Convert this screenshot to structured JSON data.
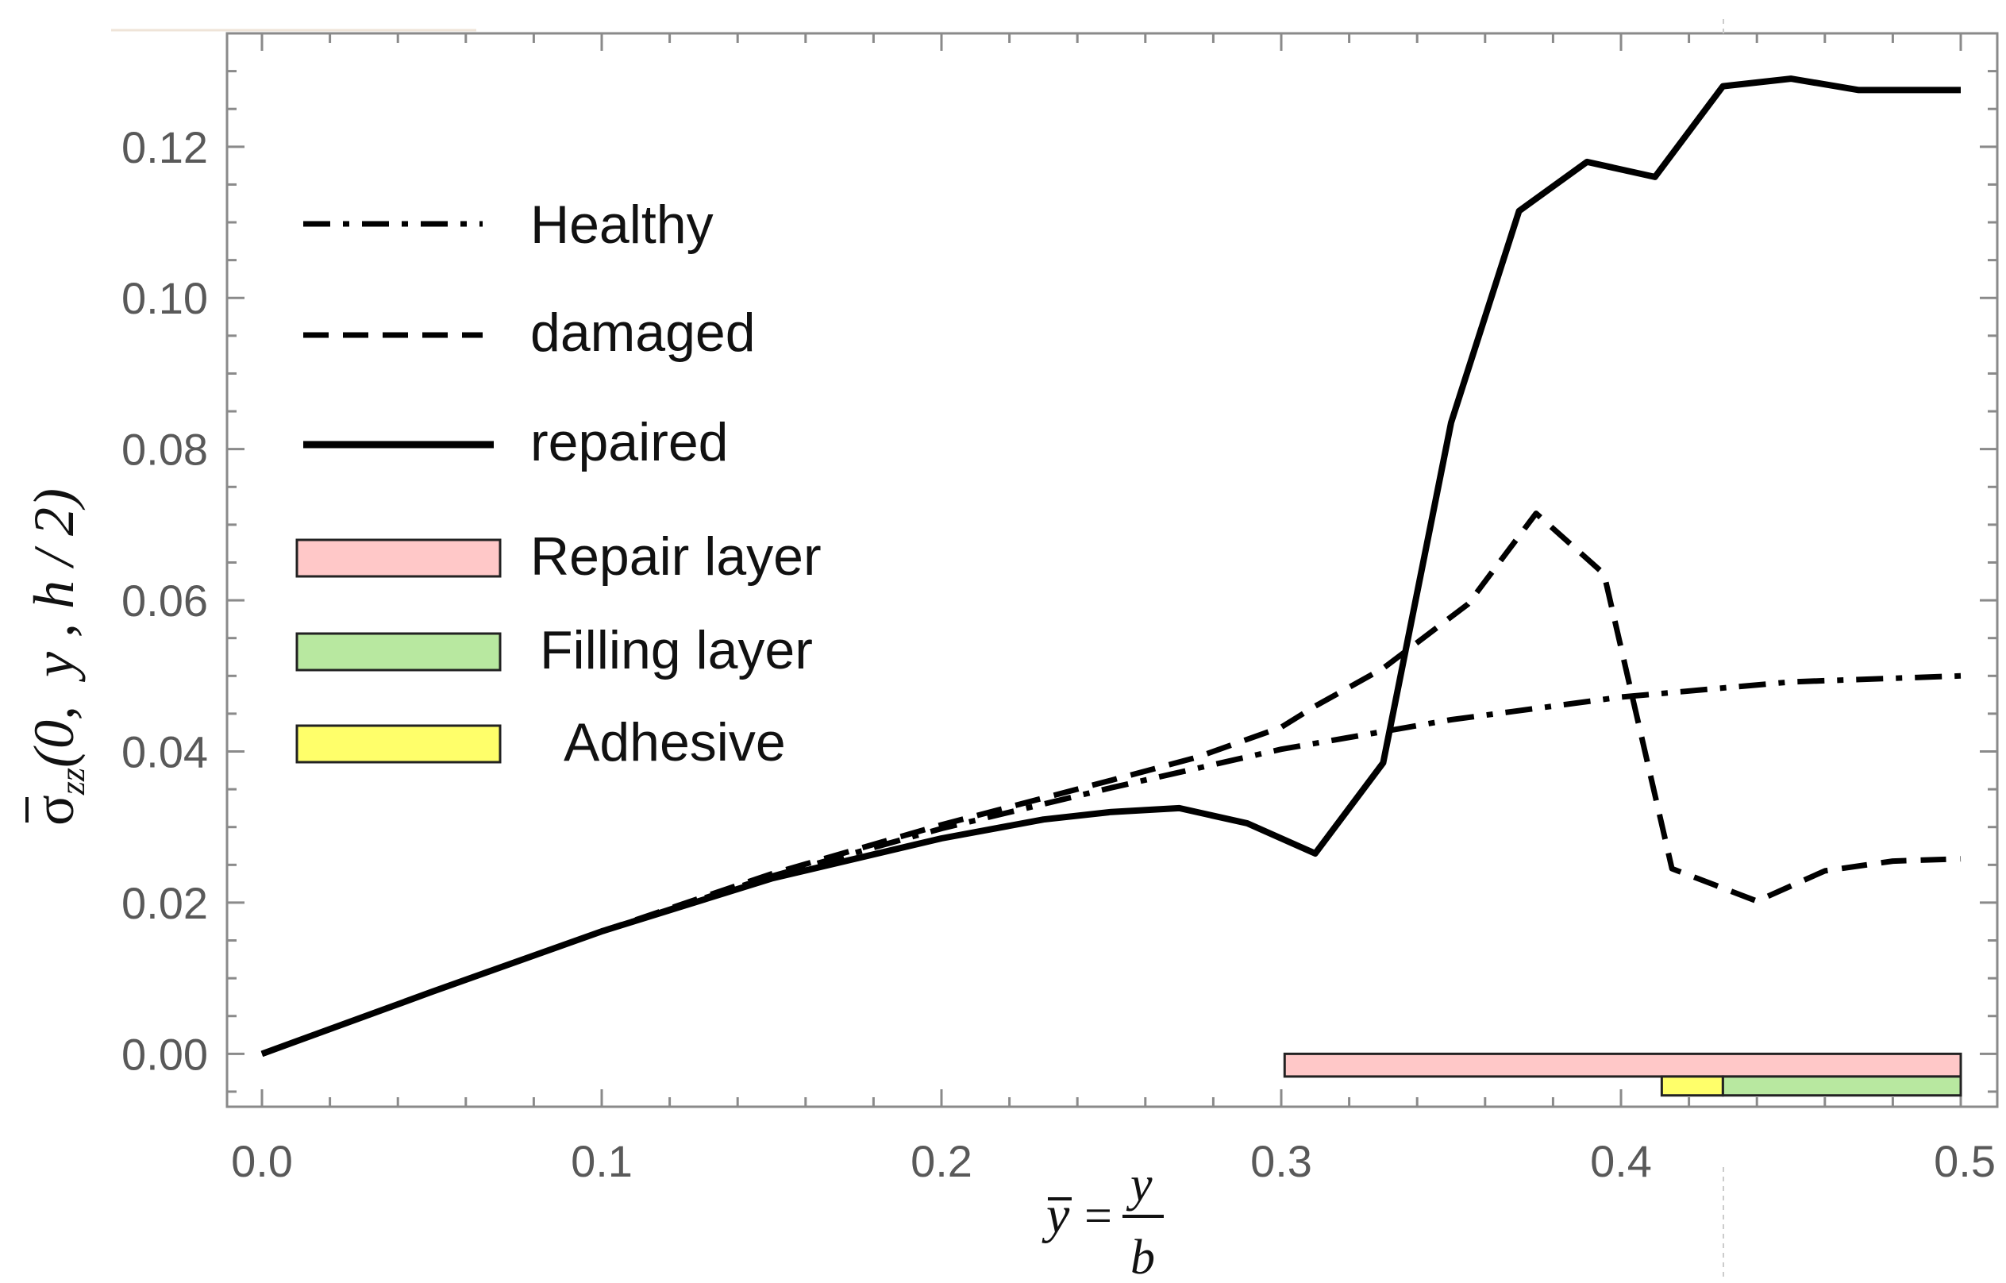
{
  "chart_data": {
    "type": "line",
    "title": "",
    "xlim": [
      0.0,
      0.5
    ],
    "ylim": [
      -0.007,
      0.135
    ],
    "xticks": [
      "0.0",
      "0.1",
      "0.2",
      "0.3",
      "0.4",
      "0.5"
    ],
    "yticks": [
      "0.00",
      "0.02",
      "0.04",
      "0.06",
      "0.08",
      "0.10",
      "0.12"
    ],
    "xlabel": {
      "lhs": "y",
      "eq": "=",
      "num": "y",
      "den": "b"
    },
    "ylabel": {
      "sym": "σ",
      "sub": "zz",
      "args": "(0,  y , h / 2)"
    },
    "series": [
      {
        "name": "Healthy",
        "style": "dashdot",
        "x": [
          0.0,
          0.05,
          0.1,
          0.15,
          0.2,
          0.25,
          0.3,
          0.35,
          0.4,
          0.45,
          0.5
        ],
        "y": [
          0.0,
          0.0082,
          0.0162,
          0.0235,
          0.0298,
          0.0352,
          0.0403,
          0.0442,
          0.0472,
          0.0492,
          0.05
        ]
      },
      {
        "name": "damaged",
        "style": "dashed",
        "x": [
          0.0,
          0.05,
          0.1,
          0.15,
          0.2,
          0.25,
          0.275,
          0.3,
          0.31,
          0.33,
          0.355,
          0.375,
          0.395,
          0.415,
          0.44,
          0.46,
          0.48,
          0.5
        ],
        "y": [
          0.0,
          0.0082,
          0.0162,
          0.0238,
          0.0303,
          0.0362,
          0.0392,
          0.0432,
          0.046,
          0.051,
          0.0595,
          0.0715,
          0.0635,
          0.0245,
          0.0202,
          0.0242,
          0.0255,
          0.0258
        ]
      },
      {
        "name": "repaired",
        "style": "solid",
        "x": [
          0.0,
          0.05,
          0.1,
          0.15,
          0.2,
          0.23,
          0.25,
          0.27,
          0.29,
          0.31,
          0.33,
          0.35,
          0.37,
          0.39,
          0.41,
          0.43,
          0.45,
          0.47,
          0.5
        ],
        "y": [
          0.0,
          0.0082,
          0.0162,
          0.0232,
          0.0285,
          0.031,
          0.032,
          0.0325,
          0.0305,
          0.0265,
          0.0385,
          0.0835,
          0.1115,
          0.118,
          0.116,
          0.128,
          0.129,
          0.1275,
          0.1275
        ]
      }
    ],
    "bands": [
      {
        "name": "Repair layer",
        "x0": 0.301,
        "x1": 0.5,
        "y0": -0.003,
        "y1": 0.0,
        "color": "#ffc8c8"
      },
      {
        "name": "Adhesive",
        "x0": 0.412,
        "x1": 0.43,
        "y0": -0.0055,
        "y1": -0.003,
        "color": "#ffff6a"
      },
      {
        "name": "Filling layer",
        "x0": 0.43,
        "x1": 0.5,
        "y0": -0.0055,
        "y1": -0.003,
        "color": "#b8e8a0"
      }
    ],
    "legend": {
      "placement": "top-left",
      "lines": [
        "Healthy",
        "damaged",
        "repaired"
      ],
      "swatches": [
        "Repair layer",
        "Filling layer",
        "Adhesive"
      ]
    }
  }
}
